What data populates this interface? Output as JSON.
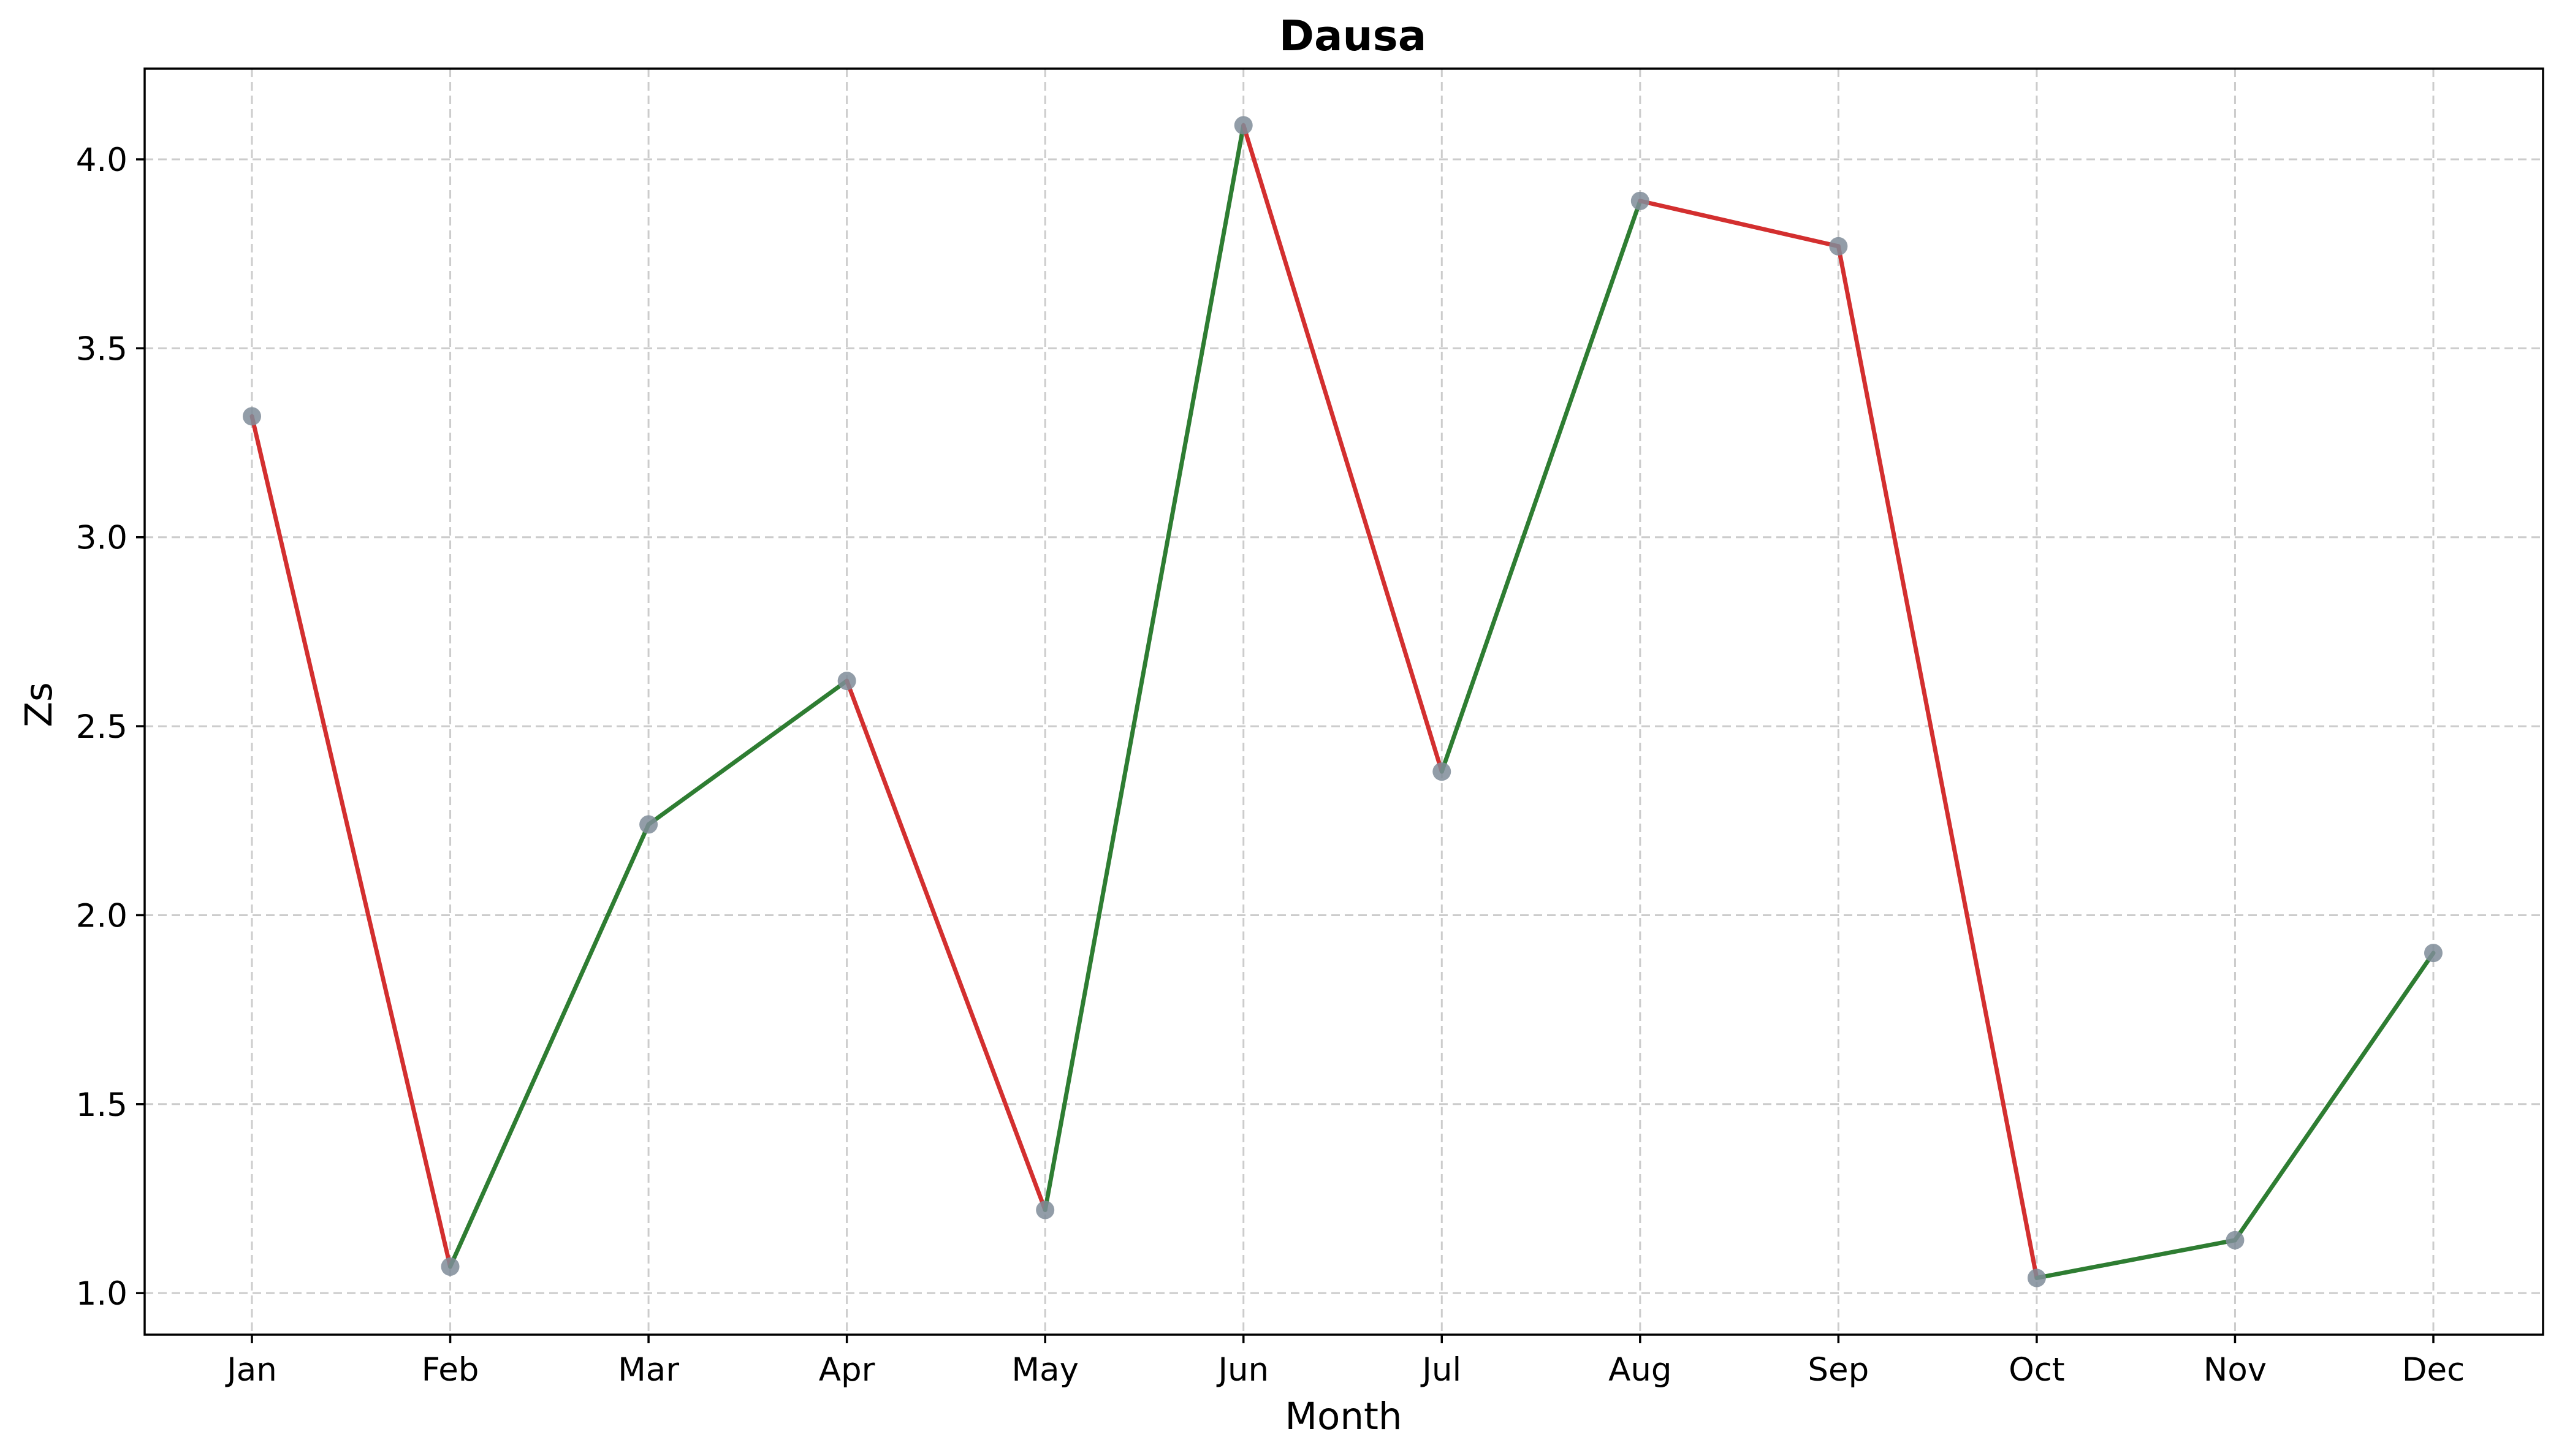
{
  "chart_data": {
    "type": "line",
    "title": "Dausa",
    "xlabel": "Month",
    "ylabel": "Zs",
    "categories": [
      "Jan",
      "Feb",
      "Mar",
      "Apr",
      "May",
      "Jun",
      "Jul",
      "Aug",
      "Sep",
      "Oct",
      "Nov",
      "Dec"
    ],
    "values": [
      3.32,
      1.07,
      2.24,
      2.62,
      1.22,
      4.09,
      2.38,
      3.89,
      3.77,
      1.04,
      1.14,
      1.9
    ],
    "ylim": [
      0.89,
      4.24
    ],
    "yticks": [
      "1.0",
      "1.5",
      "2.0",
      "2.5",
      "3.0",
      "3.5",
      "4.0"
    ],
    "grid": true,
    "segment_colors": {
      "increase": "#2e7d32",
      "decrease": "#d32f2f"
    },
    "marker_color": "#7f8c99"
  }
}
